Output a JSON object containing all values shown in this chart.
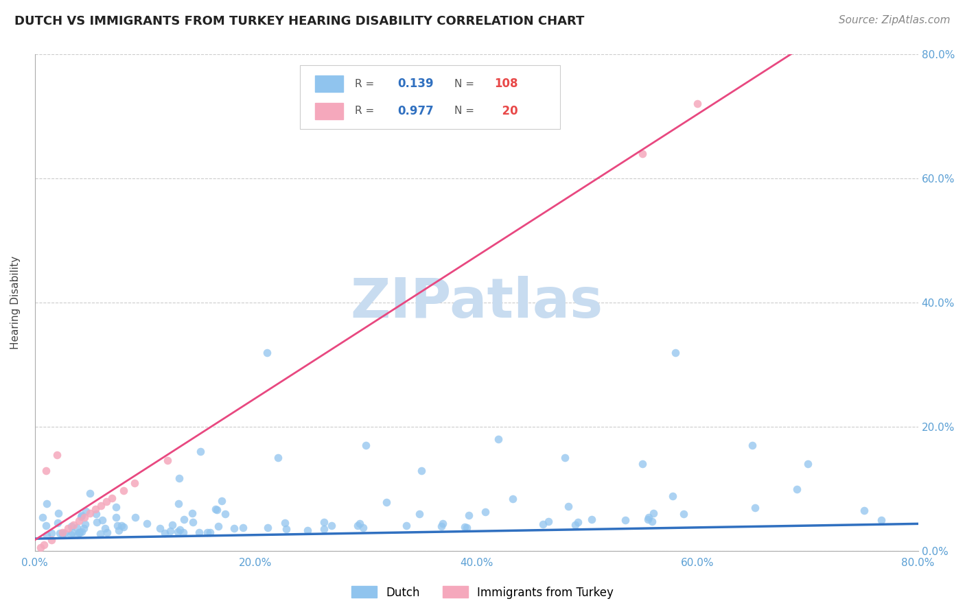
{
  "title": "DUTCH VS IMMIGRANTS FROM TURKEY HEARING DISABILITY CORRELATION CHART",
  "source": "Source: ZipAtlas.com",
  "ylabel": "Hearing Disability",
  "xlim": [
    0.0,
    0.8
  ],
  "ylim": [
    0.0,
    0.8
  ],
  "xtick_labels": [
    "0.0%",
    "20.0%",
    "40.0%",
    "60.0%",
    "80.0%"
  ],
  "xtick_vals": [
    0.0,
    0.2,
    0.4,
    0.6,
    0.8
  ],
  "ytick_labels": [
    "0.0%",
    "20.0%",
    "40.0%",
    "60.0%",
    "80.0%"
  ],
  "ytick_vals": [
    0.0,
    0.2,
    0.4,
    0.6,
    0.8
  ],
  "dutch_R": 0.139,
  "dutch_N": 108,
  "turkey_R": 0.977,
  "turkey_N": 20,
  "dutch_color": "#90C4EE",
  "turkey_color": "#F5A8BC",
  "dutch_line_color": "#3070C0",
  "turkey_line_color": "#E84880",
  "watermark_text": "ZIPatlas",
  "watermark_color": "#C8DCF0",
  "legend_R_color": "#3070C0",
  "legend_N_color": "#E84848",
  "background_color": "#FFFFFF",
  "title_fontsize": 13,
  "source_fontsize": 11
}
